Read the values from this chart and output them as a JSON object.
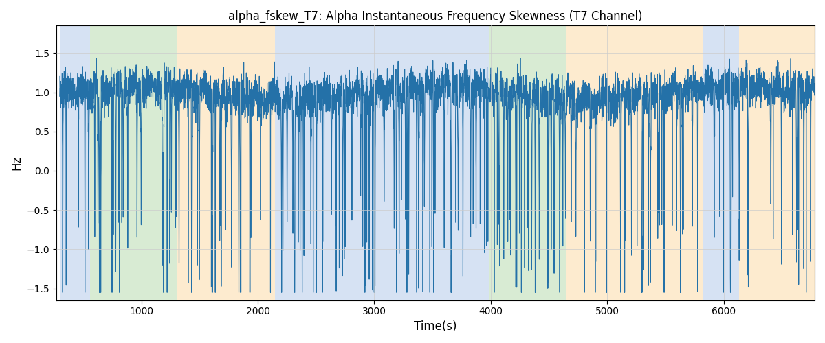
{
  "title": "alpha_fskew_T7: Alpha Instantaneous Frequency Skewness (T7 Channel)",
  "xlabel": "Time(s)",
  "ylabel": "Hz",
  "ylim": [
    -1.65,
    1.85
  ],
  "xlim": [
    270,
    6780
  ],
  "line_color": "#2471a8",
  "line_width": 0.8,
  "bg_regions": [
    {
      "xstart": 300,
      "xend": 560,
      "color": "#aec6e8",
      "alpha": 0.5
    },
    {
      "xstart": 560,
      "xend": 1310,
      "color": "#b2d8a8",
      "alpha": 0.5
    },
    {
      "xstart": 1310,
      "xend": 2150,
      "color": "#fdd9a0",
      "alpha": 0.5
    },
    {
      "xstart": 2150,
      "xend": 3870,
      "color": "#aec6e8",
      "alpha": 0.5
    },
    {
      "xstart": 3870,
      "xend": 3980,
      "color": "#aec6e8",
      "alpha": 0.5
    },
    {
      "xstart": 3980,
      "xend": 4650,
      "color": "#b2d8a8",
      "alpha": 0.5
    },
    {
      "xstart": 4650,
      "xend": 4780,
      "color": "#fdd9a0",
      "alpha": 0.5
    },
    {
      "xstart": 4780,
      "xend": 5820,
      "color": "#fdd9a0",
      "alpha": 0.5
    },
    {
      "xstart": 5820,
      "xend": 6130,
      "color": "#aec6e8",
      "alpha": 0.5
    },
    {
      "xstart": 6130,
      "xend": 6780,
      "color": "#fdd9a0",
      "alpha": 0.5
    }
  ],
  "seed": 7,
  "n_points": 6500,
  "x_start": 300,
  "x_end": 6780
}
